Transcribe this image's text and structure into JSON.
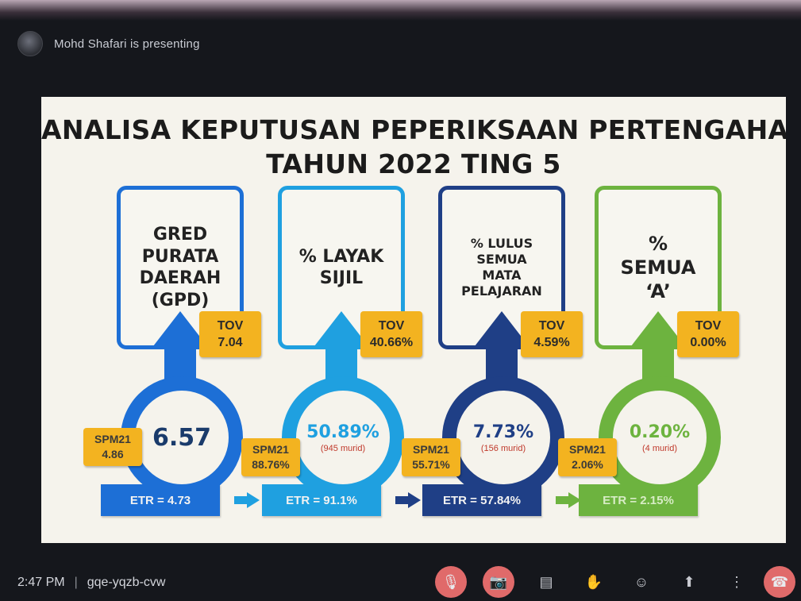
{
  "presenter": {
    "name_text": "Mohd Shafari is presenting"
  },
  "slide": {
    "title_line1": "ANALISA KEPUTUSAN PEPERIKSAAN PERTENGAHAN",
    "title_line2": "TAHUN 2022 TING 5",
    "cards": [
      {
        "heading": "GRED\nPURATA\nDAERAH\n(GPD)",
        "value": "6.57",
        "murid": "",
        "tov_label": "TOV",
        "tov_value": "7.04",
        "spm_label": "SPM21",
        "spm_value": "4.86",
        "etr": "ETR = 4.73",
        "color": "#1d6fd6"
      },
      {
        "heading": "% LAYAK\nSIJIL",
        "value": "50.89%",
        "murid": "(945 murid)",
        "tov_label": "TOV",
        "tov_value": "40.66%",
        "spm_label": "SPM21",
        "spm_value": "88.76%",
        "etr": "ETR = 91.1%",
        "color": "#1fa0e0"
      },
      {
        "heading": "% LULUS\nSEMUA\nMATA\nPELAJARAN",
        "value": "7.73%",
        "murid": "(156 murid)",
        "tov_label": "TOV",
        "tov_value": "4.59%",
        "spm_label": "SPM21",
        "spm_value": "55.71%",
        "etr": "ETR = 57.84%",
        "color": "#1f3f86"
      },
      {
        "heading": "%\nSEMUA\n‘A’",
        "value": "0.20%",
        "murid": "(4 murid)",
        "tov_label": "TOV",
        "tov_value": "0.00%",
        "spm_label": "SPM21",
        "spm_value": "2.06%",
        "etr": "ETR = 2.15%",
        "color": "#6db33f"
      }
    ]
  },
  "meeting": {
    "time": "2:47 PM",
    "code": "gqe-yqzb-cvw"
  },
  "controls": [
    {
      "name": "microphone-off-icon",
      "glyph": "🎙"
    },
    {
      "name": "camera-off-icon",
      "glyph": "📷"
    },
    {
      "name": "captions-icon",
      "glyph": "▤"
    },
    {
      "name": "raise-hand-icon",
      "glyph": "✋"
    },
    {
      "name": "emoji-icon",
      "glyph": "☺"
    },
    {
      "name": "present-screen-icon",
      "glyph": "⬆"
    },
    {
      "name": "more-options-icon",
      "glyph": "⋮"
    },
    {
      "name": "end-call-icon",
      "glyph": "☎"
    }
  ]
}
